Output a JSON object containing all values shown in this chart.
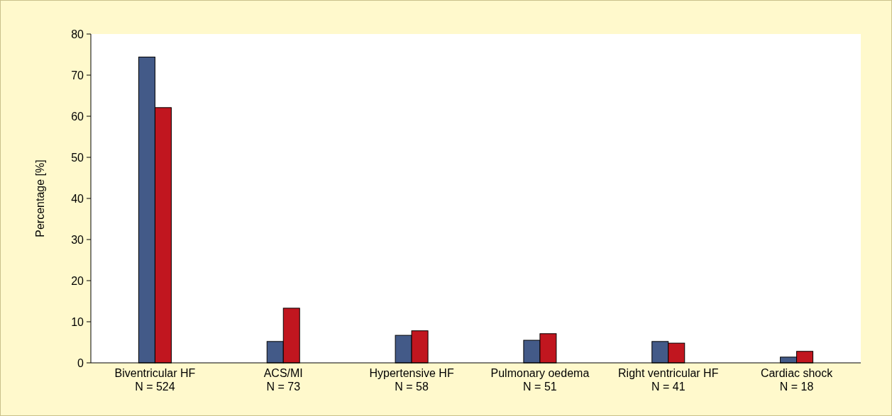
{
  "chart_data": {
    "type": "bar",
    "ylabel": "Percentage [%]",
    "categories": [
      "Biventricular HF\nN = 524",
      "ACS/MI\nN = 73",
      "Hypertensive HF\nN = 58",
      "Pulmonary oedema\nN = 51",
      "Right ventricular HF\nN = 41",
      "Cardiac shock\nN = 18"
    ],
    "series": [
      {
        "color": "#435a88",
        "values": [
          74.4,
          5.2,
          6.7,
          5.5,
          5.2,
          1.4
        ]
      },
      {
        "color": "#c1161f",
        "values": [
          62.1,
          13.3,
          7.8,
          7.1,
          4.8,
          2.8
        ]
      }
    ],
    "ylim": [
      0,
      80
    ],
    "yticks": [
      0,
      10,
      20,
      30,
      40,
      50,
      60,
      70,
      80
    ],
    "grid": false
  }
}
